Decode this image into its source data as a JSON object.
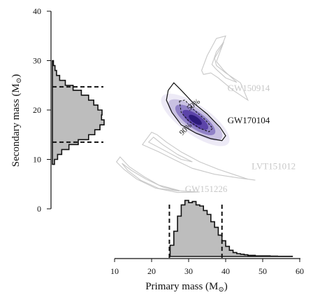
{
  "chart_data": {
    "type": "scatter",
    "x_axis": {
      "label": "Primary mass (M",
      "unit_symbol": "⊙",
      "label_close": ")",
      "ticks": [
        10,
        20,
        30,
        40,
        50,
        60
      ],
      "range": [
        10,
        60
      ]
    },
    "y_axis": {
      "label": "Secondary mass (M",
      "unit_symbol": "⊙",
      "label_close": ")",
      "ticks": [
        0,
        10,
        20,
        30,
        40
      ],
      "range": [
        0,
        40
      ]
    },
    "events": [
      {
        "name": "GW150914",
        "color": "#c8c8c8",
        "label_x": 40.5,
        "label_y": 23.8
      },
      {
        "name": "GW170104",
        "color": "#111111",
        "label_x": 40.5,
        "label_y": 17.3
      },
      {
        "name": "LVT151012",
        "color": "#c8c8c8",
        "label_x": 47.0,
        "label_y": 8.0
      },
      {
        "name": "GW151226",
        "color": "#c8c8c8",
        "label_x": 29.0,
        "label_y": 3.4
      }
    ],
    "contour_labels": [
      "50%",
      "90%"
    ],
    "primary_mass_marginal": {
      "bin_edges": [
        25,
        26,
        27,
        28,
        29,
        30,
        31,
        32,
        33,
        34,
        35,
        36,
        37,
        38,
        39,
        40,
        41,
        42,
        43,
        44,
        45,
        46,
        47,
        48,
        49,
        50,
        52,
        54,
        56,
        58
      ],
      "heights": [
        0.2,
        0.45,
        0.72,
        0.92,
        1.0,
        0.96,
        0.98,
        0.92,
        0.9,
        0.82,
        0.75,
        0.62,
        0.52,
        0.38,
        0.28,
        0.18,
        0.11,
        0.07,
        0.05,
        0.04,
        0.03,
        0.02,
        0.02,
        0.01,
        0.01,
        0.01,
        0.005,
        0.003,
        0.002
      ],
      "bounds_90": [
        24.8,
        39.0
      ]
    },
    "secondary_mass_marginal": {
      "bin_edges": [
        9,
        10,
        11,
        12,
        13,
        14,
        15,
        16,
        17,
        18,
        19,
        20,
        21,
        22,
        23,
        24,
        25,
        26,
        27,
        28,
        29,
        30
      ],
      "widths": [
        0.04,
        0.1,
        0.18,
        0.32,
        0.5,
        0.7,
        0.82,
        0.92,
        1.0,
        0.95,
        0.96,
        0.88,
        0.8,
        0.7,
        0.56,
        0.4,
        0.25,
        0.14,
        0.08,
        0.05,
        0.02
      ],
      "bounds_90": [
        13.5,
        24.7
      ]
    },
    "posterior_colors": [
      "#2d1a7a",
      "#5a40a8",
      "#8a7ac4",
      "#c4bce0",
      "#ebe8f5"
    ]
  }
}
